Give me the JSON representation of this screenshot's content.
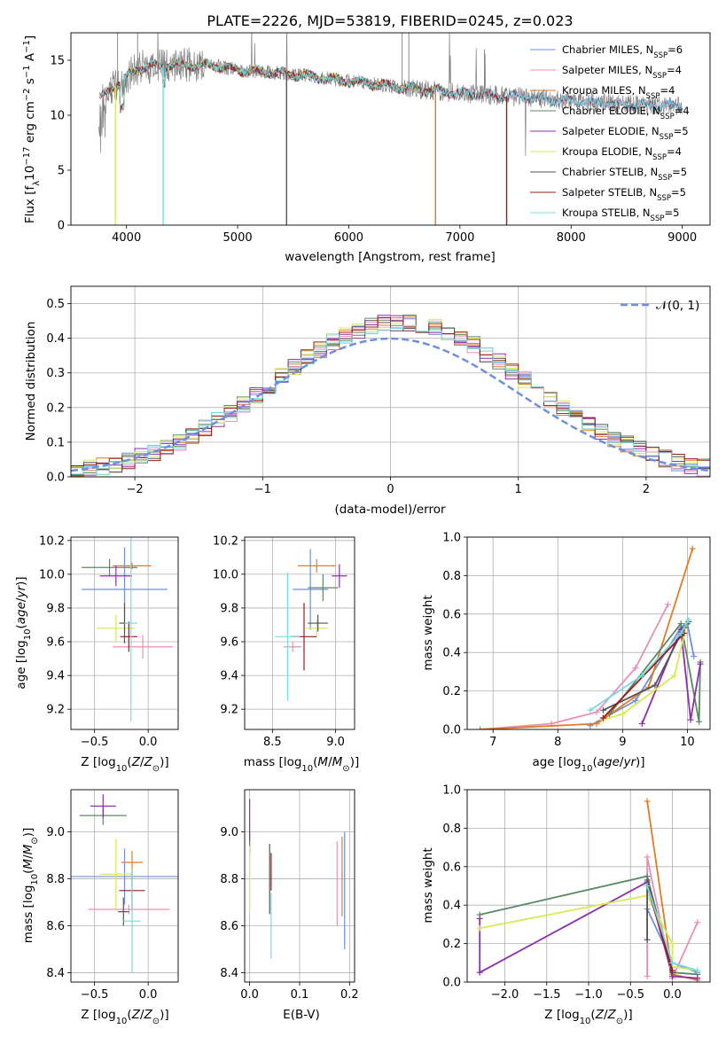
{
  "title": "PLATE=2226, MJD=53819, FIBERID=0245, z=0.023",
  "colors": {
    "Chabrier MILES": "#6f8fdd",
    "Salpeter MILES": "#e88fb8",
    "Kroupa MILES": "#e07b27",
    "Chabrier ELODIE": "#5a8a63",
    "Salpeter ELODIE": "#8c2fad",
    "Kroupa ELODIE": "#d7ea52",
    "Chabrier STELIB": "#555555",
    "Salpeter STELIB": "#9b1b1b",
    "Kroupa STELIB": "#79dbe0",
    "normal": "#6f8fdd"
  },
  "chart_data": [
    {
      "id": "spectrum",
      "type": "line",
      "xlabel": "wavelength [Angstrom, rest frame]",
      "ylabel": "Flux [f_λ 10^-17 erg cm^-2 s^-1 A^-1]",
      "xlim": [
        3500,
        9250
      ],
      "ylim": [
        0,
        17.5
      ],
      "xticks": [
        4000,
        5000,
        6000,
        7000,
        8000,
        9000
      ],
      "yticks": [
        0,
        5,
        10,
        15
      ],
      "legend_position": "upper right",
      "legend": [
        {
          "name": "Chabrier MILES",
          "nssp": "6"
        },
        {
          "name": "Salpeter MILES",
          "nssp": "4"
        },
        {
          "name": "Kroupa MILES",
          "nssp": "4"
        },
        {
          "name": "Chabrier ELODIE",
          "nssp": "4"
        },
        {
          "name": "Salpeter ELODIE",
          "nssp": "5"
        },
        {
          "name": "Kroupa ELODIE",
          "nssp": "4"
        },
        {
          "name": "Chabrier STELIB",
          "nssp": "5"
        },
        {
          "name": "Salpeter STELIB",
          "nssp": "5"
        },
        {
          "name": "Kroupa STELIB",
          "nssp": "5"
        }
      ],
      "continuum": [
        [
          3750,
          11.5
        ],
        [
          3900,
          12.7
        ],
        [
          4000,
          13.4
        ],
        [
          4100,
          14.3
        ],
        [
          4300,
          14.5
        ],
        [
          4500,
          14.6
        ],
        [
          4800,
          14.5
        ],
        [
          5000,
          14.1
        ],
        [
          5300,
          13.9
        ],
        [
          5600,
          13.6
        ],
        [
          6000,
          13.1
        ],
        [
          6500,
          12.5
        ],
        [
          7000,
          12.0
        ],
        [
          7500,
          11.7
        ],
        [
          8000,
          11.3
        ],
        [
          8500,
          11.0
        ],
        [
          9000,
          10.8
        ]
      ],
      "features": [
        {
          "series": "Kroupa ELODIE",
          "x": 3900,
          "drop_to": 0
        },
        {
          "series": "Kroupa STELIB",
          "x": 4330,
          "drop_to": 0
        },
        {
          "series": "Chabrier STELIB",
          "x": 5440,
          "drop_to": 0
        },
        {
          "series": "Kroupa MILES",
          "x": 6780,
          "drop_to": 0
        },
        {
          "series": "Salpeter STELIB",
          "x": 7420,
          "drop_to": 0
        }
      ]
    },
    {
      "id": "residuals",
      "type": "line",
      "xlabel": "(data-model)/error",
      "ylabel": "Normed distribution",
      "xlim": [
        -2.5,
        2.5
      ],
      "ylim": [
        0,
        0.55
      ],
      "xticks": [
        -2,
        -1,
        0,
        1,
        2
      ],
      "yticks": [
        0.0,
        0.1,
        0.2,
        0.3,
        0.4,
        0.5
      ],
      "grid": true,
      "legend_position": "upper right",
      "normal_label": "𝒩(0, 1)",
      "bin_width": 0.1
    },
    {
      "id": "age_vs_Z",
      "type": "scatter",
      "xlabel": "Z [log10(Z/Z⊙)]",
      "ylabel": "age [log10(age/yr)]",
      "xlim": [
        -0.72,
        0.28
      ],
      "ylim": [
        9.08,
        10.22
      ],
      "xticks": [
        -0.5,
        0.0
      ],
      "yticks": [
        9.2,
        9.4,
        9.6,
        9.8,
        10.0,
        10.2
      ],
      "grid": true,
      "points": [
        {
          "series": "Chabrier MILES",
          "x": -0.22,
          "xerr": 0.4,
          "y": 9.91,
          "yerr": 0.25
        },
        {
          "series": "Salpeter MILES",
          "x": -0.05,
          "xerr": 0.28,
          "y": 9.57,
          "yerr": 0.07
        },
        {
          "series": "Kroupa MILES",
          "x": -0.15,
          "xerr": 0.18,
          "y": 10.05,
          "yerr": 0.02
        },
        {
          "series": "Chabrier ELODIE",
          "x": -0.36,
          "xerr": 0.26,
          "y": 10.04,
          "yerr": 0.05
        },
        {
          "series": "Salpeter ELODIE",
          "x": -0.3,
          "xerr": 0.15,
          "y": 9.99,
          "yerr": 0.06
        },
        {
          "series": "Kroupa ELODIE",
          "x": -0.3,
          "xerr": 0.18,
          "y": 9.68,
          "yerr": 0.08
        },
        {
          "series": "Chabrier STELIB",
          "x": -0.22,
          "xerr": 0.05,
          "y": 9.71,
          "yerr": 0.12
        },
        {
          "series": "Salpeter STELIB",
          "x": -0.18,
          "xerr": 0.08,
          "y": 9.63,
          "yerr": 0.09
        },
        {
          "series": "Kroupa STELIB",
          "x": -0.16,
          "xerr": 0.06,
          "y": 9.71,
          "yerr": 0.58
        }
      ]
    },
    {
      "id": "age_vs_mass",
      "type": "scatter",
      "xlabel": "mass [log10(M/M⊙)]",
      "xlim": [
        8.28,
        9.15
      ],
      "ylim": [
        9.08,
        10.22
      ],
      "xticks": [
        8.5,
        9.0
      ],
      "yticks": [
        9.2,
        9.4,
        9.6,
        9.8,
        10.0,
        10.2
      ],
      "grid": true,
      "points": [
        {
          "series": "Chabrier MILES",
          "x": 8.8,
          "xerr": 0.14,
          "y": 9.91,
          "yerr": 0.24
        },
        {
          "series": "Salpeter MILES",
          "x": 8.66,
          "xerr": 0.07,
          "y": 9.57,
          "yerr": 0.03
        },
        {
          "series": "Kroupa MILES",
          "x": 8.85,
          "xerr": 0.15,
          "y": 10.05,
          "yerr": 0.04
        },
        {
          "series": "Chabrier ELODIE",
          "x": 8.9,
          "xerr": 0.12,
          "y": 9.92,
          "yerr": 0.08
        },
        {
          "series": "Salpeter ELODIE",
          "x": 9.03,
          "xerr": 0.06,
          "y": 9.99,
          "yerr": 0.07
        },
        {
          "series": "Kroupa ELODIE",
          "x": 8.85,
          "xerr": 0.09,
          "y": 9.68,
          "yerr": 0.05
        },
        {
          "series": "Chabrier STELIB",
          "x": 8.86,
          "xerr": 0.08,
          "y": 9.71,
          "yerr": 0.05
        },
        {
          "series": "Salpeter STELIB",
          "x": 8.75,
          "xerr": 0.1,
          "y": 9.63,
          "yerr": 0.2
        },
        {
          "series": "Kroupa STELIB",
          "x": 8.62,
          "xerr": 0.1,
          "y": 9.63,
          "yerr": 0.38
        }
      ]
    },
    {
      "id": "weight_vs_age",
      "type": "line",
      "xlabel": "age [log10(age/yr)]",
      "ylabel": "mass weight",
      "xlim": [
        6.6,
        10.35
      ],
      "ylim": [
        0,
        1.0
      ],
      "xticks": [
        7,
        8,
        9,
        10
      ],
      "yticks": [
        0.0,
        0.2,
        0.4,
        0.6,
        0.8,
        1.0
      ],
      "grid": true,
      "series": [
        {
          "name": "Chabrier MILES",
          "points": [
            [
              8.5,
              0.02
            ],
            [
              9.2,
              0.15
            ],
            [
              9.9,
              0.53
            ],
            [
              10.0,
              0.55
            ],
            [
              10.1,
              0.38
            ]
          ]
        },
        {
          "name": "Salpeter MILES",
          "points": [
            [
              6.8,
              0.0
            ],
            [
              7.9,
              0.03
            ],
            [
              8.6,
              0.09
            ],
            [
              9.2,
              0.32
            ],
            [
              9.7,
              0.65
            ]
          ]
        },
        {
          "name": "Kroupa MILES",
          "points": [
            [
              6.8,
              0.0
            ],
            [
              8.6,
              0.03
            ],
            [
              9.4,
              0.22
            ],
            [
              10.08,
              0.94
            ]
          ]
        },
        {
          "name": "Chabrier ELODIE",
          "points": [
            [
              8.8,
              0.08
            ],
            [
              9.9,
              0.55
            ],
            [
              10.18,
              0.04
            ],
            [
              10.2,
              0.35
            ]
          ]
        },
        {
          "name": "Salpeter ELODIE",
          "points": [
            [
              9.3,
              0.03
            ],
            [
              9.9,
              0.52
            ],
            [
              10.05,
              0.05
            ],
            [
              10.2,
              0.34
            ]
          ]
        },
        {
          "name": "Kroupa ELODIE",
          "points": [
            [
              8.7,
              0.05
            ],
            [
              9.0,
              0.08
            ],
            [
              9.8,
              0.28
            ],
            [
              10.0,
              0.56
            ]
          ]
        },
        {
          "name": "Chabrier STELIB",
          "points": [
            [
              8.7,
              0.1
            ],
            [
              9.5,
              0.23
            ],
            [
              9.95,
              0.53
            ],
            [
              10.02,
              0.56
            ]
          ]
        },
        {
          "name": "Salpeter STELIB",
          "points": [
            [
              8.7,
              0.06
            ],
            [
              9.95,
              0.5
            ]
          ]
        },
        {
          "name": "Kroupa STELIB",
          "points": [
            [
              8.5,
              0.1
            ],
            [
              9.3,
              0.28
            ],
            [
              9.9,
              0.5
            ],
            [
              10.02,
              0.57
            ]
          ]
        }
      ]
    },
    {
      "id": "mass_vs_Z",
      "type": "scatter",
      "xlabel": "Z [log10(Z/Z⊙)]",
      "ylabel": "mass [log10(M/M⊙)]",
      "xlim": [
        -0.72,
        0.28
      ],
      "ylim": [
        8.36,
        9.18
      ],
      "xticks": [
        -0.5,
        0.0
      ],
      "yticks": [
        8.4,
        8.6,
        8.8,
        9.0
      ],
      "grid": true,
      "points": [
        {
          "series": "Chabrier MILES",
          "x": -0.22,
          "xerr": 0.5,
          "y": 8.81,
          "yerr": 0.12
        },
        {
          "series": "Salpeter MILES",
          "x": -0.18,
          "xerr": 0.38,
          "y": 8.67,
          "yerr": 0.02
        },
        {
          "series": "Kroupa MILES",
          "x": -0.15,
          "xerr": 0.1,
          "y": 8.87,
          "yerr": 0.05
        },
        {
          "series": "Chabrier ELODIE",
          "x": -0.42,
          "xerr": 0.22,
          "y": 9.07,
          "yerr": 0.04
        },
        {
          "series": "Salpeter ELODIE",
          "x": -0.42,
          "xerr": 0.12,
          "y": 9.11,
          "yerr": 0.05
        },
        {
          "series": "Kroupa ELODIE",
          "x": -0.3,
          "xerr": 0.15,
          "y": 8.82,
          "yerr": 0.15
        },
        {
          "series": "Chabrier STELIB",
          "x": -0.23,
          "xerr": 0.05,
          "y": 8.66,
          "yerr": 0.06
        },
        {
          "series": "Salpeter STELIB",
          "x": -0.15,
          "xerr": 0.12,
          "y": 8.75,
          "yerr": 0.08
        },
        {
          "series": "Kroupa STELIB",
          "x": -0.15,
          "xerr": 0.08,
          "y": 8.62,
          "yerr": 0.22
        }
      ]
    },
    {
      "id": "mass_vs_ebv",
      "type": "scatter",
      "xlabel": "E(B-V)",
      "xlim": [
        -0.01,
        0.21
      ],
      "ylim": [
        8.36,
        9.18
      ],
      "xticks": [
        0.0,
        0.1,
        0.2
      ],
      "yticks": [
        8.4,
        8.6,
        8.8,
        9.0
      ],
      "grid": true,
      "points": [
        {
          "series": "Chabrier MILES",
          "x": 0.19,
          "y": 8.75,
          "yerr": 0.25
        },
        {
          "series": "Salpeter MILES",
          "x": 0.175,
          "y": 8.78,
          "yerr": 0.18
        },
        {
          "series": "Kroupa MILES",
          "x": 0.185,
          "y": 8.81,
          "yerr": 0.17
        },
        {
          "series": "Chabrier ELODIE",
          "x": 0.0,
          "y": 8.95,
          "yerr": 0.05
        },
        {
          "series": "Salpeter ELODIE",
          "x": 0.0,
          "y": 9.05,
          "yerr": 0.09
        },
        {
          "series": "Kroupa ELODIE",
          "x": 0.0,
          "y": 8.8,
          "yerr": 0.14
        },
        {
          "series": "Chabrier STELIB",
          "x": 0.04,
          "y": 8.8,
          "yerr": 0.15
        },
        {
          "series": "Salpeter STELIB",
          "x": 0.043,
          "y": 8.83,
          "yerr": 0.08
        },
        {
          "series": "Kroupa STELIB",
          "x": 0.043,
          "y": 8.6,
          "yerr": 0.14
        }
      ]
    },
    {
      "id": "weight_vs_Z",
      "type": "line",
      "xlabel": "Z [log10(Z/Z⊙)]",
      "ylabel": "mass weight",
      "xlim": [
        -2.45,
        0.45
      ],
      "ylim": [
        0,
        1.0
      ],
      "xticks": [
        -2.0,
        -1.5,
        -1.0,
        -0.5,
        0.0
      ],
      "yticks": [
        0.0,
        0.2,
        0.4,
        0.6,
        0.8,
        1.0
      ],
      "grid": true,
      "series": [
        {
          "name": "Chabrier MILES",
          "points": [
            [
              -0.3,
              0.38
            ],
            [
              0.0,
              0.1
            ],
            [
              0.3,
              0.05
            ]
          ]
        },
        {
          "name": "Salpeter MILES",
          "points": [
            [
              -0.3,
              0.03
            ],
            [
              -0.3,
              0.65
            ],
            [
              0.0,
              0.02
            ],
            [
              0.3,
              0.31
            ]
          ]
        },
        {
          "name": "Kroupa MILES",
          "points": [
            [
              -0.3,
              0.94
            ],
            [
              0.0,
              0.04
            ],
            [
              0.3,
              0.01
            ]
          ]
        },
        {
          "name": "Chabrier ELODIE",
          "points": [
            [
              -2.3,
              0.35
            ],
            [
              -0.3,
              0.55
            ],
            [
              0.0,
              0.05
            ],
            [
              0.3,
              0.04
            ]
          ]
        },
        {
          "name": "Salpeter ELODIE",
          "points": [
            [
              -2.3,
              0.33
            ],
            [
              -2.3,
              0.05
            ],
            [
              -0.3,
              0.52
            ],
            [
              0.0,
              0.03
            ],
            [
              0.3,
              0.02
            ]
          ]
        },
        {
          "name": "Kroupa ELODIE",
          "points": [
            [
              -2.3,
              0.28
            ],
            [
              -0.3,
              0.45
            ],
            [
              0.0,
              0.2
            ],
            [
              0.0,
              0.08
            ],
            [
              0.3,
              0.06
            ]
          ]
        },
        {
          "name": "Chabrier STELIB",
          "points": [
            [
              -0.3,
              0.22
            ],
            [
              -0.3,
              0.53
            ],
            [
              0.0,
              0.05
            ]
          ]
        },
        {
          "name": "Salpeter STELIB",
          "points": [
            [
              -0.3,
              0.5
            ],
            [
              0.0,
              0.06
            ]
          ]
        },
        {
          "name": "Kroupa STELIB",
          "points": [
            [
              -0.3,
              0.5
            ],
            [
              0.0,
              0.1
            ],
            [
              0.3,
              0.06
            ]
          ]
        }
      ]
    }
  ]
}
